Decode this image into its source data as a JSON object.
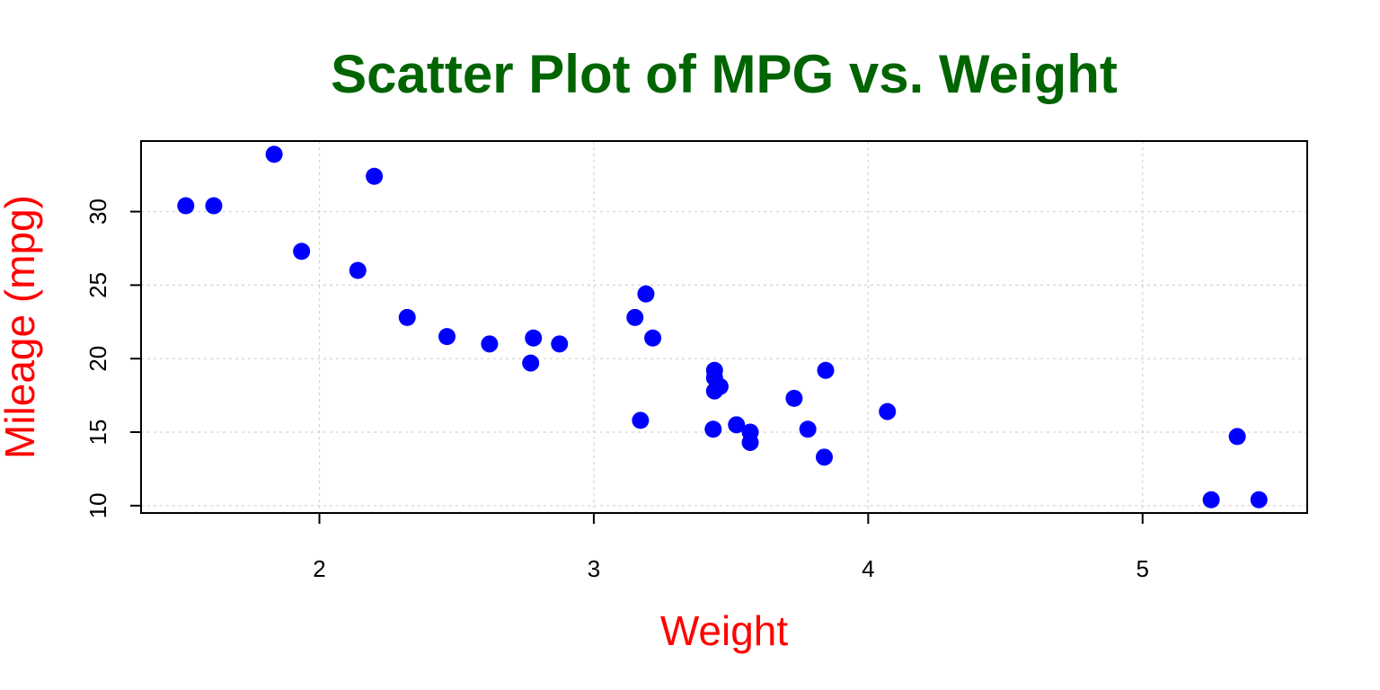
{
  "colors": {
    "title": "#006400",
    "axis_labels": "#ff0000",
    "points": "#0000ff",
    "grid": "#d3d3d3",
    "frame": "#000000"
  },
  "chart_data": {
    "type": "scatter",
    "title": "Scatter Plot of MPG vs. Weight",
    "xlabel": "Weight",
    "ylabel": "Mileage (mpg)",
    "xlim": [
      1.35,
      5.6
    ],
    "ylim": [
      9.5,
      34.8
    ],
    "xticks": [
      2,
      3,
      4,
      5
    ],
    "yticks": [
      10,
      15,
      20,
      25,
      30
    ],
    "grid": true,
    "grid_style": "dotted",
    "marker": "filled-circle",
    "points": [
      {
        "x": 2.62,
        "y": 21.0
      },
      {
        "x": 2.875,
        "y": 21.0
      },
      {
        "x": 2.32,
        "y": 22.8
      },
      {
        "x": 3.215,
        "y": 21.4
      },
      {
        "x": 3.44,
        "y": 18.7
      },
      {
        "x": 3.46,
        "y": 18.1
      },
      {
        "x": 3.57,
        "y": 14.3
      },
      {
        "x": 3.19,
        "y": 24.4
      },
      {
        "x": 3.15,
        "y": 22.8
      },
      {
        "x": 3.44,
        "y": 19.2
      },
      {
        "x": 3.44,
        "y": 17.8
      },
      {
        "x": 4.07,
        "y": 16.4
      },
      {
        "x": 3.73,
        "y": 17.3
      },
      {
        "x": 3.78,
        "y": 15.2
      },
      {
        "x": 5.25,
        "y": 10.4
      },
      {
        "x": 5.424,
        "y": 10.4
      },
      {
        "x": 5.345,
        "y": 14.7
      },
      {
        "x": 2.2,
        "y": 32.4
      },
      {
        "x": 1.615,
        "y": 30.4
      },
      {
        "x": 1.835,
        "y": 33.9
      },
      {
        "x": 2.465,
        "y": 21.5
      },
      {
        "x": 3.52,
        "y": 15.5
      },
      {
        "x": 3.435,
        "y": 15.2
      },
      {
        "x": 3.84,
        "y": 13.3
      },
      {
        "x": 3.845,
        "y": 19.2
      },
      {
        "x": 1.935,
        "y": 27.3
      },
      {
        "x": 2.14,
        "y": 26.0
      },
      {
        "x": 1.513,
        "y": 30.4
      },
      {
        "x": 3.17,
        "y": 15.8
      },
      {
        "x": 2.77,
        "y": 19.7
      },
      {
        "x": 3.57,
        "y": 15.0
      },
      {
        "x": 2.78,
        "y": 21.4
      }
    ]
  }
}
